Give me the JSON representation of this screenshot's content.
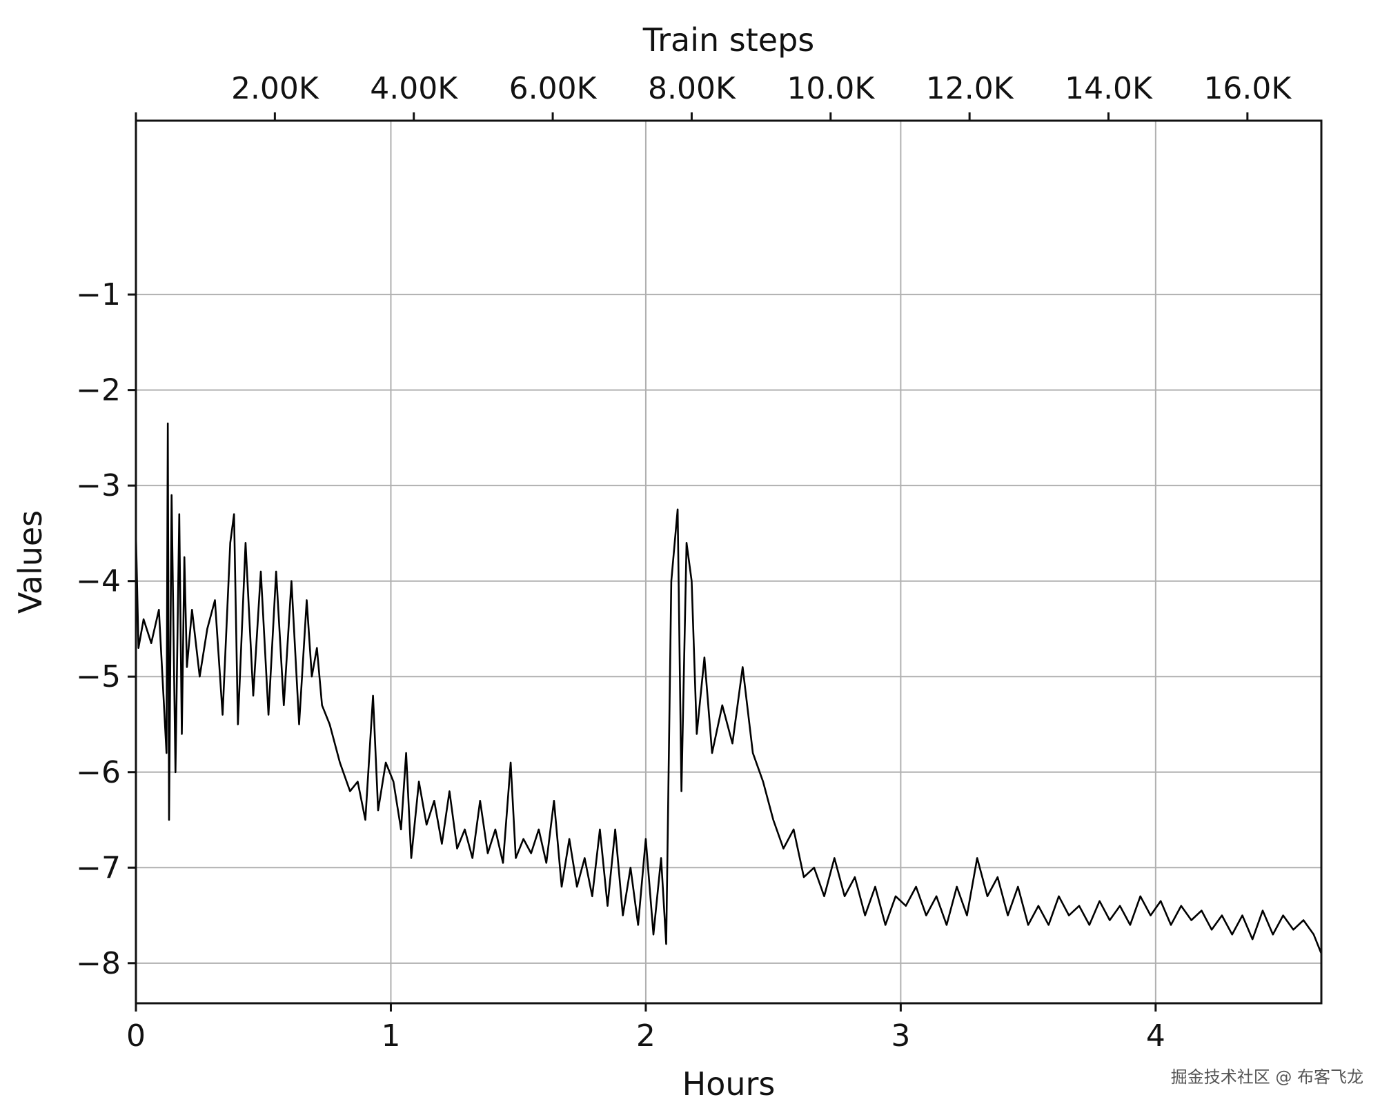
{
  "chart_data": {
    "type": "line",
    "title": "",
    "xlabel": "Hours",
    "ylabel": "Values",
    "secondary_xlabel": "Train steps",
    "xlim": [
      0,
      4.65
    ],
    "ylim": [
      -8.42,
      0.82
    ],
    "x_ticks": [
      0,
      1,
      2,
      3,
      4
    ],
    "x_tick_labels": [
      "0",
      "1",
      "2",
      "3",
      "4"
    ],
    "y_ticks": [
      -1,
      -2,
      -3,
      -4,
      -5,
      -6,
      -7,
      -8
    ],
    "y_tick_labels": [
      "−1",
      "−2",
      "−3",
      "−4",
      "−5",
      "−6",
      "−7",
      "−8"
    ],
    "top_ticks_hours": [
      0.545,
      1.09,
      1.635,
      2.18,
      2.725,
      3.27,
      3.815,
      4.36
    ],
    "top_tick_labels": [
      "2.00K",
      "4.00K",
      "6.00K",
      "8.00K",
      "10.0K",
      "12.0K",
      "14.0K",
      "16.0K"
    ],
    "grid": true,
    "line_color": "#000000",
    "series": [
      {
        "values": [
          [
            0.0,
            -3.5
          ],
          [
            0.01,
            -4.7
          ],
          [
            0.03,
            -4.4
          ],
          [
            0.06,
            -4.65
          ],
          [
            0.09,
            -4.3
          ],
          [
            0.12,
            -5.8
          ],
          [
            0.125,
            -2.35
          ],
          [
            0.13,
            -6.5
          ],
          [
            0.14,
            -3.1
          ],
          [
            0.155,
            -6.0
          ],
          [
            0.17,
            -3.3
          ],
          [
            0.18,
            -5.6
          ],
          [
            0.19,
            -3.75
          ],
          [
            0.2,
            -4.9
          ],
          [
            0.22,
            -4.3
          ],
          [
            0.25,
            -5.0
          ],
          [
            0.28,
            -4.5
          ],
          [
            0.31,
            -4.2
          ],
          [
            0.34,
            -5.4
          ],
          [
            0.37,
            -3.6
          ],
          [
            0.385,
            -3.3
          ],
          [
            0.4,
            -5.5
          ],
          [
            0.43,
            -3.6
          ],
          [
            0.46,
            -5.2
          ],
          [
            0.49,
            -3.9
          ],
          [
            0.52,
            -5.4
          ],
          [
            0.55,
            -3.9
          ],
          [
            0.58,
            -5.3
          ],
          [
            0.61,
            -4.0
          ],
          [
            0.64,
            -5.5
          ],
          [
            0.67,
            -4.2
          ],
          [
            0.69,
            -5.0
          ],
          [
            0.71,
            -4.7
          ],
          [
            0.73,
            -5.3
          ],
          [
            0.76,
            -5.5
          ],
          [
            0.8,
            -5.9
          ],
          [
            0.84,
            -6.2
          ],
          [
            0.87,
            -6.1
          ],
          [
            0.9,
            -6.5
          ],
          [
            0.93,
            -5.2
          ],
          [
            0.95,
            -6.4
          ],
          [
            0.98,
            -5.9
          ],
          [
            1.01,
            -6.1
          ],
          [
            1.04,
            -6.6
          ],
          [
            1.06,
            -5.8
          ],
          [
            1.08,
            -6.9
          ],
          [
            1.11,
            -6.1
          ],
          [
            1.14,
            -6.55
          ],
          [
            1.17,
            -6.3
          ],
          [
            1.2,
            -6.75
          ],
          [
            1.23,
            -6.2
          ],
          [
            1.26,
            -6.8
          ],
          [
            1.29,
            -6.6
          ],
          [
            1.32,
            -6.9
          ],
          [
            1.35,
            -6.3
          ],
          [
            1.38,
            -6.85
          ],
          [
            1.41,
            -6.6
          ],
          [
            1.44,
            -6.95
          ],
          [
            1.47,
            -5.9
          ],
          [
            1.49,
            -6.9
          ],
          [
            1.52,
            -6.7
          ],
          [
            1.55,
            -6.85
          ],
          [
            1.58,
            -6.6
          ],
          [
            1.61,
            -6.95
          ],
          [
            1.64,
            -6.3
          ],
          [
            1.67,
            -7.2
          ],
          [
            1.7,
            -6.7
          ],
          [
            1.73,
            -7.2
          ],
          [
            1.76,
            -6.9
          ],
          [
            1.79,
            -7.3
          ],
          [
            1.82,
            -6.6
          ],
          [
            1.85,
            -7.4
          ],
          [
            1.88,
            -6.6
          ],
          [
            1.91,
            -7.5
          ],
          [
            1.94,
            -7.0
          ],
          [
            1.97,
            -7.6
          ],
          [
            2.0,
            -6.7
          ],
          [
            2.03,
            -7.7
          ],
          [
            2.06,
            -6.9
          ],
          [
            2.08,
            -7.8
          ],
          [
            2.1,
            -4.0
          ],
          [
            2.125,
            -3.25
          ],
          [
            2.14,
            -6.2
          ],
          [
            2.16,
            -3.6
          ],
          [
            2.18,
            -4.0
          ],
          [
            2.2,
            -5.6
          ],
          [
            2.23,
            -4.8
          ],
          [
            2.26,
            -5.8
          ],
          [
            2.3,
            -5.3
          ],
          [
            2.34,
            -5.7
          ],
          [
            2.38,
            -4.9
          ],
          [
            2.42,
            -5.8
          ],
          [
            2.46,
            -6.1
          ],
          [
            2.5,
            -6.5
          ],
          [
            2.54,
            -6.8
          ],
          [
            2.58,
            -6.6
          ],
          [
            2.62,
            -7.1
          ],
          [
            2.66,
            -7.0
          ],
          [
            2.7,
            -7.3
          ],
          [
            2.74,
            -6.9
          ],
          [
            2.78,
            -7.3
          ],
          [
            2.82,
            -7.1
          ],
          [
            2.86,
            -7.5
          ],
          [
            2.9,
            -7.2
          ],
          [
            2.94,
            -7.6
          ],
          [
            2.98,
            -7.3
          ],
          [
            3.02,
            -7.4
          ],
          [
            3.06,
            -7.2
          ],
          [
            3.1,
            -7.5
          ],
          [
            3.14,
            -7.3
          ],
          [
            3.18,
            -7.6
          ],
          [
            3.22,
            -7.2
          ],
          [
            3.26,
            -7.5
          ],
          [
            3.3,
            -6.9
          ],
          [
            3.34,
            -7.3
          ],
          [
            3.38,
            -7.1
          ],
          [
            3.42,
            -7.5
          ],
          [
            3.46,
            -7.2
          ],
          [
            3.5,
            -7.6
          ],
          [
            3.54,
            -7.4
          ],
          [
            3.58,
            -7.6
          ],
          [
            3.62,
            -7.3
          ],
          [
            3.66,
            -7.5
          ],
          [
            3.7,
            -7.4
          ],
          [
            3.74,
            -7.6
          ],
          [
            3.78,
            -7.35
          ],
          [
            3.82,
            -7.55
          ],
          [
            3.86,
            -7.4
          ],
          [
            3.9,
            -7.6
          ],
          [
            3.94,
            -7.3
          ],
          [
            3.98,
            -7.5
          ],
          [
            4.02,
            -7.35
          ],
          [
            4.06,
            -7.6
          ],
          [
            4.1,
            -7.4
          ],
          [
            4.14,
            -7.55
          ],
          [
            4.18,
            -7.45
          ],
          [
            4.22,
            -7.65
          ],
          [
            4.26,
            -7.5
          ],
          [
            4.3,
            -7.7
          ],
          [
            4.34,
            -7.5
          ],
          [
            4.38,
            -7.75
          ],
          [
            4.42,
            -7.45
          ],
          [
            4.46,
            -7.7
          ],
          [
            4.5,
            -7.5
          ],
          [
            4.54,
            -7.65
          ],
          [
            4.58,
            -7.55
          ],
          [
            4.62,
            -7.7
          ],
          [
            4.65,
            -7.9
          ]
        ]
      }
    ]
  },
  "watermark": "掘金技术社区 @ 布客飞龙"
}
